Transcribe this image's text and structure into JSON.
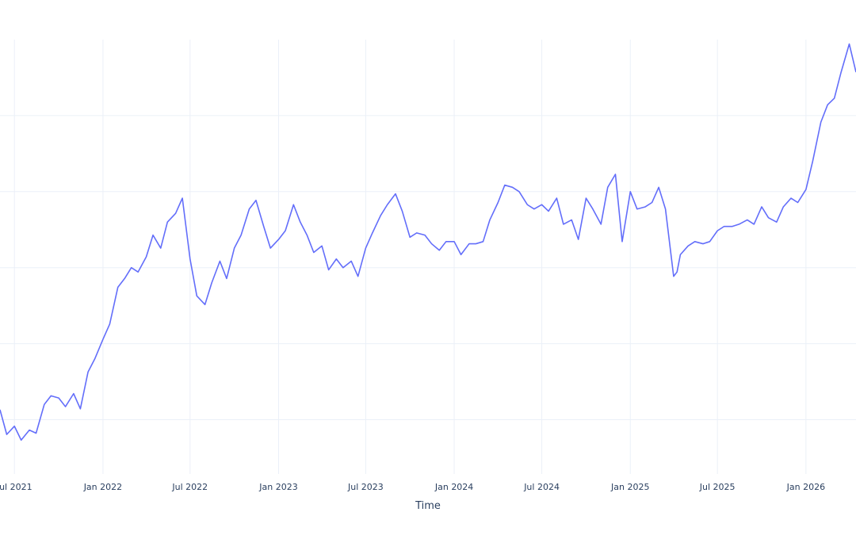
{
  "chart_data": {
    "type": "line",
    "title": "",
    "xlabel": "Time",
    "ylabel": "",
    "x_tick_labels": [
      "Jul 2021",
      "Jan 2022",
      "Jul 2022",
      "Jan 2023",
      "Jul 2023",
      "Jan 2024",
      "Jul 2024",
      "Jan 2025",
      "Jul 2025",
      "Jan 2026"
    ],
    "x_tick_dates": [
      "2021-07-01",
      "2022-01-01",
      "2022-07-01",
      "2023-01-01",
      "2023-07-01",
      "2024-01-01",
      "2024-07-01",
      "2025-01-01",
      "2025-07-01",
      "2026-01-01"
    ],
    "xlim": [
      "2021-06-01",
      "2026-04-15"
    ],
    "ylim": [
      0,
      1
    ],
    "y_gridlines": [
      0.125,
      0.3,
      0.475,
      0.65,
      0.825
    ],
    "grid": true,
    "line_color": "#636efa",
    "grid_color": "#ebf0f8",
    "series": [
      {
        "x": [
          "2021-06-01",
          "2021-06-15",
          "2021-07-01",
          "2021-07-15",
          "2021-08-01",
          "2021-08-15",
          "2021-09-01",
          "2021-09-15",
          "2021-10-01",
          "2021-10-15",
          "2021-11-01",
          "2021-11-15",
          "2021-12-01",
          "2021-12-15",
          "2022-01-01",
          "2022-01-15",
          "2022-02-01",
          "2022-02-15",
          "2022-03-01",
          "2022-03-15",
          "2022-04-01",
          "2022-04-15",
          "2022-05-01",
          "2022-05-15",
          "2022-06-01",
          "2022-06-15",
          "2022-07-01",
          "2022-07-15",
          "2022-08-01",
          "2022-08-15",
          "2022-09-01",
          "2022-09-15",
          "2022-10-01",
          "2022-10-15",
          "2022-11-01",
          "2022-11-15",
          "2022-12-01",
          "2022-12-15",
          "2023-01-01",
          "2023-01-15",
          "2023-02-01",
          "2023-02-15",
          "2023-03-01",
          "2023-03-15",
          "2023-04-01",
          "2023-04-15",
          "2023-05-01",
          "2023-05-15",
          "2023-06-01",
          "2023-06-15",
          "2023-07-01",
          "2023-07-15",
          "2023-08-01",
          "2023-08-15",
          "2023-09-01",
          "2023-09-15",
          "2023-10-01",
          "2023-10-15",
          "2023-11-01",
          "2023-11-15",
          "2023-12-01",
          "2023-12-15",
          "2024-01-01",
          "2024-01-15",
          "2024-02-01",
          "2024-02-15",
          "2024-03-01",
          "2024-03-15",
          "2024-04-01",
          "2024-04-15",
          "2024-05-01",
          "2024-05-15",
          "2024-06-01",
          "2024-06-15",
          "2024-07-01",
          "2024-07-15",
          "2024-08-01",
          "2024-08-15",
          "2024-09-01",
          "2024-09-15",
          "2024-10-01",
          "2024-10-15",
          "2024-11-01",
          "2024-11-15",
          "2024-12-01",
          "2024-12-15",
          "2025-01-01",
          "2025-01-15",
          "2025-02-01",
          "2025-02-15",
          "2025-03-01",
          "2025-03-15",
          "2025-04-01",
          "2025-04-08",
          "2025-04-15",
          "2025-05-01",
          "2025-05-15",
          "2025-06-01",
          "2025-06-15",
          "2025-07-01",
          "2025-07-15",
          "2025-08-01",
          "2025-08-15",
          "2025-09-01",
          "2025-09-15",
          "2025-10-01",
          "2025-10-15",
          "2025-11-01",
          "2025-11-15",
          "2025-12-01",
          "2025-12-15",
          "2026-01-01",
          "2026-01-15",
          "2026-02-01",
          "2026-02-15",
          "2026-03-01",
          "2026-03-15",
          "2026-04-01",
          "2026-04-15"
        ],
        "y": [
          0.148,
          0.091,
          0.11,
          0.078,
          0.101,
          0.094,
          0.16,
          0.18,
          0.175,
          0.155,
          0.185,
          0.15,
          0.235,
          0.265,
          0.31,
          0.345,
          0.43,
          0.45,
          0.475,
          0.465,
          0.5,
          0.55,
          0.52,
          0.58,
          0.6,
          0.635,
          0.495,
          0.41,
          0.39,
          0.44,
          0.49,
          0.45,
          0.52,
          0.55,
          0.61,
          0.63,
          0.57,
          0.52,
          0.54,
          0.56,
          0.62,
          0.58,
          0.55,
          0.51,
          0.525,
          0.47,
          0.495,
          0.475,
          0.49,
          0.455,
          0.52,
          0.555,
          0.595,
          0.62,
          0.645,
          0.605,
          0.545,
          0.555,
          0.55,
          0.53,
          0.515,
          0.535,
          0.535,
          0.505,
          0.53,
          0.53,
          0.535,
          0.585,
          0.625,
          0.665,
          0.66,
          0.65,
          0.62,
          0.61,
          0.62,
          0.605,
          0.635,
          0.575,
          0.585,
          0.54,
          0.635,
          0.61,
          0.575,
          0.66,
          0.69,
          0.535,
          0.65,
          0.61,
          0.615,
          0.625,
          0.66,
          0.61,
          0.455,
          0.465,
          0.505,
          0.525,
          0.535,
          0.53,
          0.535,
          0.56,
          0.57,
          0.57,
          0.575,
          0.585,
          0.575,
          0.615,
          0.59,
          0.58,
          0.615,
          0.635,
          0.625,
          0.655,
          0.72,
          0.81,
          0.85,
          0.865,
          0.925,
          0.99,
          0.925
        ]
      }
    ]
  }
}
